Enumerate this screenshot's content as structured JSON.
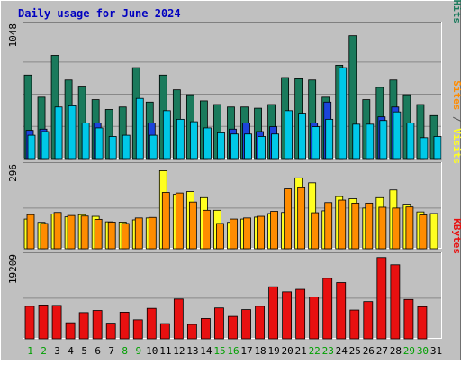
{
  "chart_data": {
    "type": "bar",
    "title": "Daily usage for June 2024",
    "days": [
      "1",
      "2",
      "3",
      "4",
      "5",
      "6",
      "7",
      "8",
      "9",
      "10",
      "11",
      "12",
      "13",
      "14",
      "15",
      "16",
      "17",
      "18",
      "19",
      "20",
      "21",
      "22",
      "23",
      "24",
      "25",
      "26",
      "27",
      "28",
      "29",
      "30",
      "31"
    ],
    "weekend_days": [
      1,
      2,
      8,
      9,
      15,
      16,
      22,
      23,
      29,
      30
    ],
    "panels": [
      {
        "id": "hits",
        "ymax_label": "1048",
        "ymax": 1048,
        "axis_labels": [
          {
            "text": "Pages",
            "color": "#00c8e8"
          },
          {
            "text": " / ",
            "color": "#555555"
          },
          {
            "text": "Files",
            "color": "#1c44dc"
          },
          {
            "text": " / ",
            "color": "#555555"
          },
          {
            "text": "Hits",
            "color": "#1a7a5c"
          }
        ],
        "series": [
          {
            "name": "Hits",
            "color": "#1a7a5c",
            "values": [
              680,
              500,
              840,
              640,
              590,
              480,
              400,
              420,
              740,
              460,
              680,
              560,
              520,
              470,
              440,
              420,
              420,
              410,
              440,
              660,
              650,
              640,
              500,
              760,
              1000,
              480,
              580,
              640,
              520,
              440,
              350
            ]
          },
          {
            "name": "Files",
            "color": "#1c44dc",
            "values": [
              230,
              240,
              0,
              0,
              0,
              290,
              0,
              0,
              0,
              290,
              0,
              0,
              0,
              0,
              0,
              240,
              290,
              220,
              260,
              0,
              0,
              290,
              460,
              0,
              0,
              0,
              340,
              420,
              0,
              0,
              0
            ]
          },
          {
            "name": "Pages",
            "color": "#00c8e8",
            "values": [
              190,
              220,
              420,
              430,
              290,
              250,
              180,
              190,
              490,
              190,
              390,
              320,
              300,
              250,
              210,
              200,
              200,
              180,
              200,
              390,
              370,
              260,
              320,
              740,
              280,
              280,
              310,
              380,
              290,
              170,
              180
            ]
          }
        ]
      },
      {
        "id": "visits",
        "ymax_label": "296",
        "ymax": 296,
        "axis_labels": [
          {
            "text": "Sites",
            "color": "#ff8c00"
          },
          {
            "text": " / ",
            "color": "#555555"
          },
          {
            "text": "Visits",
            "color": "#ffff20"
          }
        ],
        "series": [
          {
            "name": "Visits",
            "color": "#ffff20",
            "values": [
              108,
              96,
              126,
              116,
              124,
              118,
              98,
              97,
              105,
              112,
              284,
              198,
              208,
              186,
              140,
              96,
              108,
              115,
              128,
              132,
              258,
              240,
              138,
              190,
              182,
              148,
              186,
              214,
              162,
              134,
              128
            ]
          },
          {
            "name": "Sites",
            "color": "#ff8c00",
            "values": [
              124,
              92,
              132,
              121,
              119,
              107,
              97,
              92,
              112,
              114,
              205,
              203,
              170,
              140,
              92,
              108,
              112,
              118,
              136,
              218,
              222,
              131,
              168,
              177,
              166,
              166,
              151,
              148,
              152,
              123,
              0
            ]
          }
        ]
      },
      {
        "id": "kbytes",
        "ymax_label": "19209",
        "ymax": 19209,
        "axis_labels": [
          {
            "text": "KBytes",
            "color": "#e81010"
          }
        ],
        "series": [
          {
            "name": "KBytes",
            "color": "#e81010",
            "values": [
              7700,
              8000,
              7900,
              3800,
              6200,
              6700,
              3700,
              6300,
              4500,
              7200,
              3600,
              9400,
              3400,
              4800,
              7300,
              5300,
              6900,
              7700,
              12300,
              11100,
              11700,
              9900,
              14300,
              13300,
              6800,
              8800,
              19209,
              17500,
              9300,
              7600,
              0
            ]
          }
        ]
      }
    ]
  }
}
